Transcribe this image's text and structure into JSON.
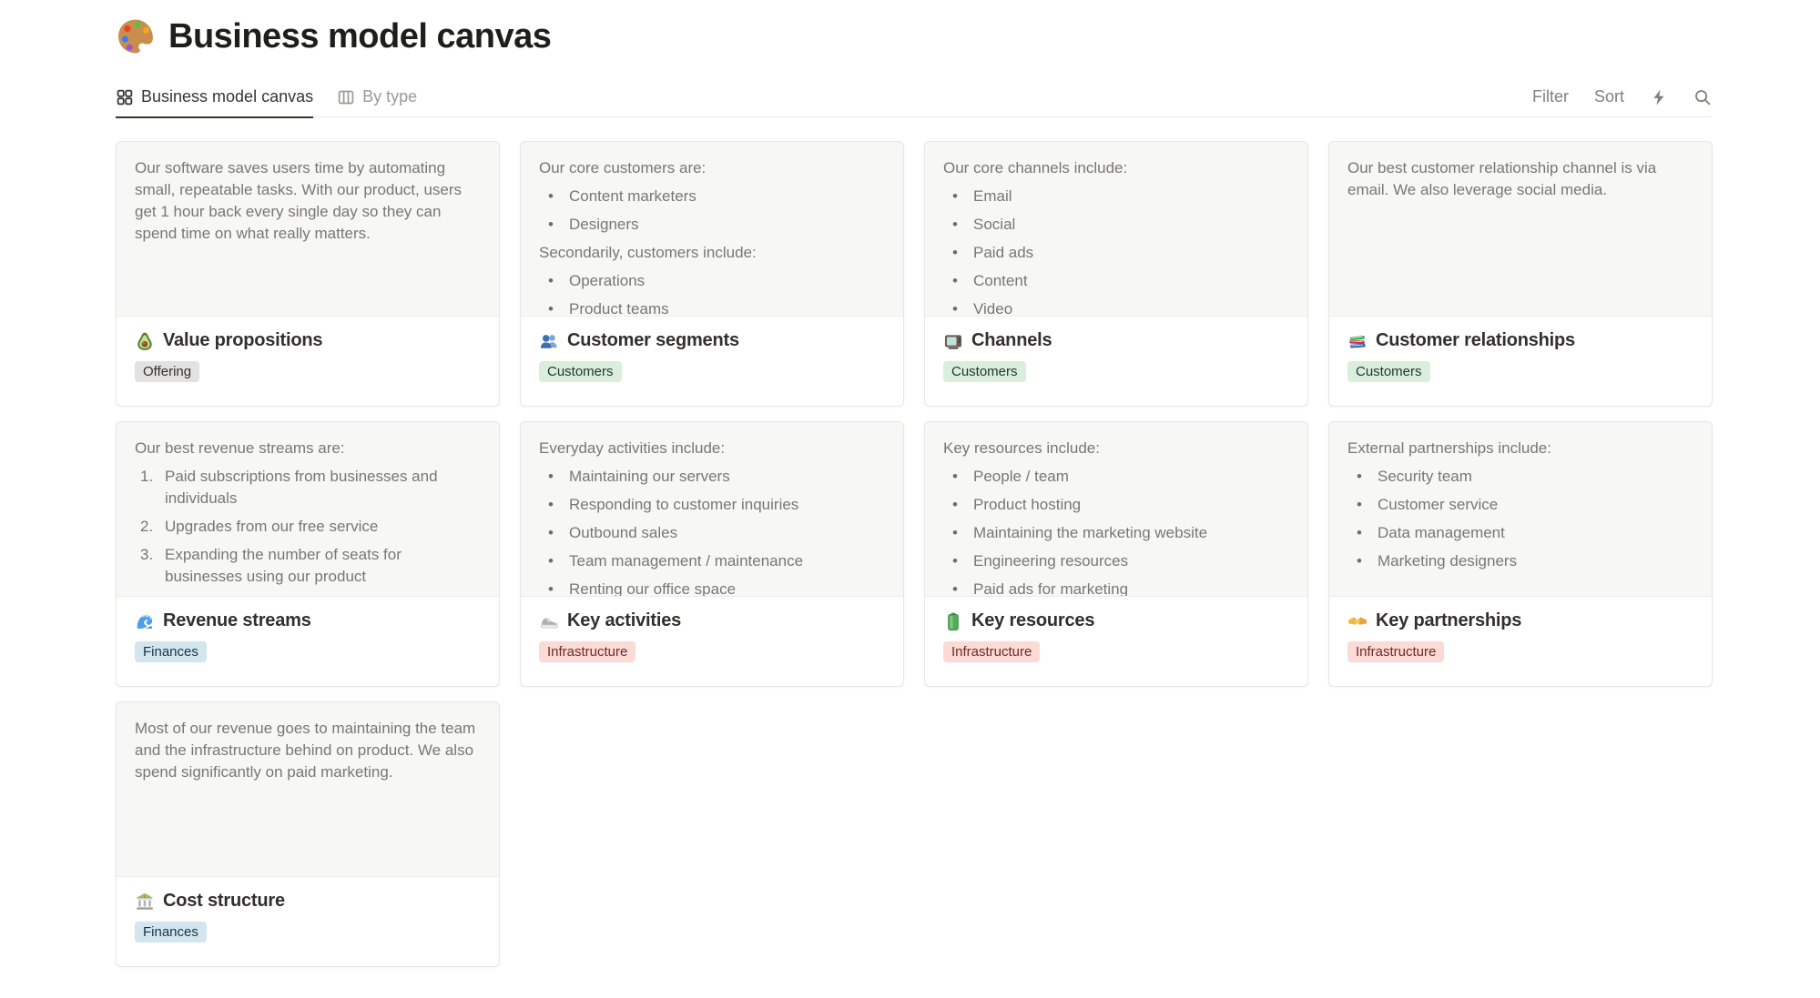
{
  "page": {
    "icon": "palette-icon",
    "title": "Business model canvas"
  },
  "tabs": [
    {
      "label": "Business model canvas",
      "icon": "gallery-icon",
      "active": true
    },
    {
      "label": "By type",
      "icon": "board-icon",
      "active": false
    }
  ],
  "toolbar": {
    "filter_label": "Filter",
    "sort_label": "Sort"
  },
  "tag_palette": {
    "gray": {
      "bg": "#E3E2E0",
      "fg": "#32302C"
    },
    "green": {
      "bg": "#DBEDDB",
      "fg": "#1C3829"
    },
    "blue": {
      "bg": "#D3E5EF",
      "fg": "#183347"
    },
    "red": {
      "bg": "#FCDAD5",
      "fg": "#6E2B22"
    }
  },
  "cards": [
    {
      "title": "Value propositions",
      "icon": "avocado-icon",
      "tag": {
        "label": "Offering",
        "bg": "#E3E2E0",
        "fg": "#32302C"
      },
      "preview": [
        {
          "type": "p",
          "text": "Our software saves users time by automating small, repeatable tasks. With our product, users get 1 hour back every single day so they can spend time on what really matters."
        }
      ]
    },
    {
      "title": "Customer segments",
      "icon": "people-icon",
      "tag": {
        "label": "Customers",
        "bg": "#DBEDDB",
        "fg": "#1C3829"
      },
      "preview": [
        {
          "type": "p",
          "text": "Our core customers are:"
        },
        {
          "type": "bullets",
          "items": [
            "Content marketers",
            "Designers"
          ]
        },
        {
          "type": "p",
          "text": "Secondarily, customers include:"
        },
        {
          "type": "bullets",
          "items": [
            "Operations",
            "Product teams"
          ]
        }
      ]
    },
    {
      "title": "Channels",
      "icon": "tv-icon",
      "tag": {
        "label": "Customers",
        "bg": "#DBEDDB",
        "fg": "#1C3829"
      },
      "preview": [
        {
          "type": "p",
          "text": "Our core channels include:"
        },
        {
          "type": "bullets",
          "items": [
            "Email",
            "Social",
            "Paid ads",
            "Content",
            "Video"
          ]
        }
      ]
    },
    {
      "title": "Customer relationships",
      "icon": "books-icon",
      "tag": {
        "label": "Customers",
        "bg": "#DBEDDB",
        "fg": "#1C3829"
      },
      "preview": [
        {
          "type": "p",
          "text": "Our best customer relationship channel is via email. We also leverage social media."
        }
      ]
    },
    {
      "title": "Revenue streams",
      "icon": "wave-icon",
      "tag": {
        "label": "Finances",
        "bg": "#D3E5EF",
        "fg": "#183347"
      },
      "preview": [
        {
          "type": "p",
          "text": "Our best revenue streams are:"
        },
        {
          "type": "numbers",
          "items": [
            "Paid subscriptions from businesses and individuals",
            "Upgrades from our free service",
            "Expanding the number of seats for businesses using our product"
          ]
        }
      ]
    },
    {
      "title": "Key activities",
      "icon": "sneaker-icon",
      "tag": {
        "label": "Infrastructure",
        "bg": "#FCDAD5",
        "fg": "#6E2B22"
      },
      "preview": [
        {
          "type": "p",
          "text": "Everyday activities include:"
        },
        {
          "type": "bullets",
          "items": [
            "Maintaining our servers",
            "Responding to customer inquiries",
            "Outbound sales",
            "Team management / maintenance",
            "Renting our office space"
          ]
        }
      ]
    },
    {
      "title": "Key resources",
      "icon": "battery-icon",
      "tag": {
        "label": "Infrastructure",
        "bg": "#FCDAD5",
        "fg": "#6E2B22"
      },
      "preview": [
        {
          "type": "p",
          "text": "Key resources include:"
        },
        {
          "type": "bullets",
          "items": [
            "People / team",
            "Product hosting",
            "Maintaining the marketing website",
            "Engineering resources",
            "Paid ads for marketing"
          ]
        }
      ]
    },
    {
      "title": "Key partnerships",
      "icon": "handshake-icon",
      "tag": {
        "label": "Infrastructure",
        "bg": "#FCDAD5",
        "fg": "#6E2B22"
      },
      "preview": [
        {
          "type": "p",
          "text": "External partnerships include:"
        },
        {
          "type": "bullets",
          "items": [
            "Security team",
            "Customer service",
            "Data management",
            "Marketing designers"
          ]
        }
      ]
    },
    {
      "title": "Cost structure",
      "icon": "bank-icon",
      "tag": {
        "label": "Finances",
        "bg": "#D3E5EF",
        "fg": "#183347"
      },
      "preview": [
        {
          "type": "p",
          "text": "Most of our revenue goes to maintaining the team and the infrastructure behind on product. We also spend significantly on paid marketing."
        }
      ]
    }
  ]
}
